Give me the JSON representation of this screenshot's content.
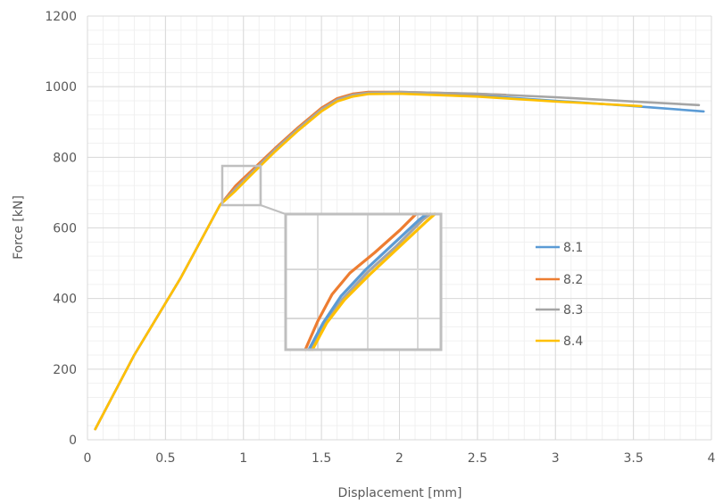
{
  "chart_data": {
    "type": "line",
    "title": "",
    "xlabel": "Displacement [mm]",
    "ylabel": "Force [kN]",
    "xlim": [
      0,
      4
    ],
    "ylim": [
      0,
      1200
    ],
    "xticks": [
      "0",
      "0.5",
      "1",
      "1.5",
      "2",
      "2.5",
      "3",
      "3.5",
      "4"
    ],
    "yticks": [
      "0",
      "200",
      "400",
      "600",
      "800",
      "1000",
      "1200"
    ],
    "grid": true,
    "legend_position": "right",
    "series": [
      {
        "name": "8.1",
        "color": "#5b9bd5",
        "x": [
          0.05,
          0.3,
          0.6,
          0.85,
          0.95,
          1.05,
          1.2,
          1.35,
          1.5,
          1.6,
          1.7,
          1.8,
          2.0,
          2.5,
          3.0,
          3.5,
          3.95
        ],
        "y": [
          30,
          240,
          460,
          665,
          710,
          755,
          820,
          880,
          935,
          962,
          976,
          982,
          982,
          975,
          960,
          945,
          930
        ]
      },
      {
        "name": "8.2",
        "color": "#ed7d31",
        "x": [
          0.05,
          0.3,
          0.6,
          0.85,
          0.95,
          1.05,
          1.2,
          1.35,
          1.5,
          1.6,
          1.7,
          1.8,
          2.0,
          2.3,
          2.68
        ],
        "y": [
          30,
          240,
          460,
          665,
          720,
          762,
          825,
          885,
          940,
          967,
          980,
          985,
          985,
          982,
          977
        ]
      },
      {
        "name": "8.3",
        "color": "#a5a5a5",
        "x": [
          0.05,
          0.3,
          0.6,
          0.85,
          0.95,
          1.05,
          1.2,
          1.35,
          1.5,
          1.6,
          1.7,
          1.8,
          2.0,
          2.5,
          3.0,
          3.5,
          3.92
        ],
        "y": [
          30,
          240,
          460,
          665,
          712,
          756,
          821,
          881,
          936,
          963,
          977,
          983,
          985,
          980,
          970,
          958,
          948
        ]
      },
      {
        "name": "8.4",
        "color": "#ffc000",
        "x": [
          0.05,
          0.3,
          0.6,
          0.85,
          0.95,
          1.05,
          1.2,
          1.35,
          1.5,
          1.6,
          1.7,
          1.8,
          2.0,
          2.5,
          3.0,
          3.55
        ],
        "y": [
          30,
          240,
          460,
          665,
          705,
          750,
          815,
          875,
          930,
          958,
          972,
          979,
          980,
          972,
          958,
          945
        ]
      }
    ]
  }
}
